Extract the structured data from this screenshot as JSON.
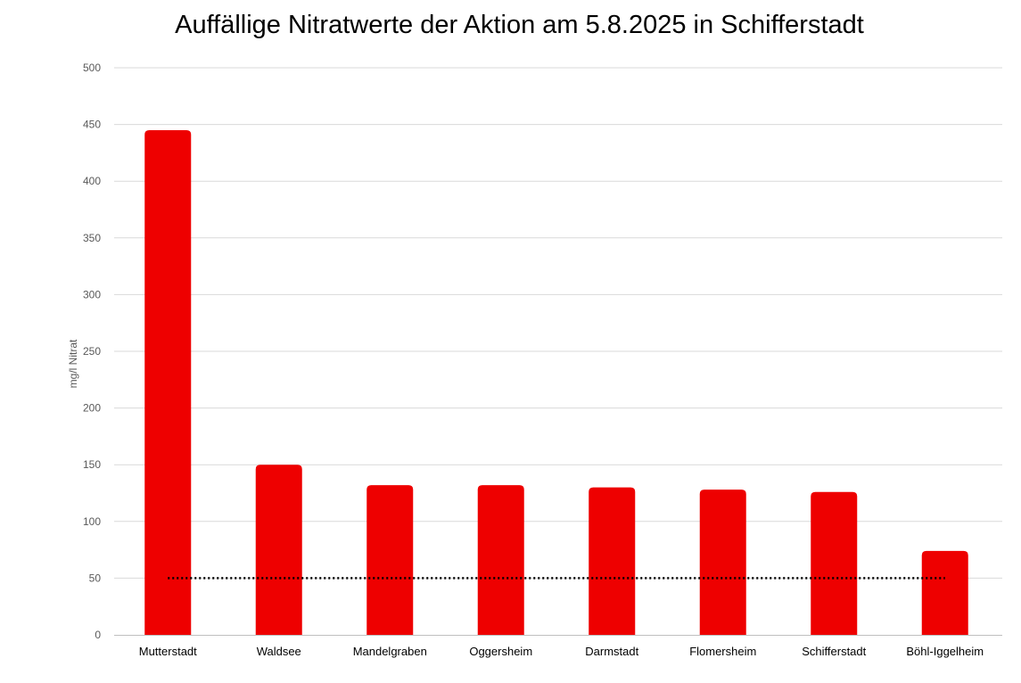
{
  "chart_data": {
    "type": "bar",
    "title": "Auffällige Nitratwerte der Aktion am 5.8.2025 in Schifferstadt",
    "xlabel": "",
    "ylabel": "mg/l Nitrat",
    "ylim": [
      0,
      500
    ],
    "yticks": [
      0,
      50,
      100,
      150,
      200,
      250,
      300,
      350,
      400,
      450,
      500
    ],
    "grid": true,
    "categories": [
      "Mutterstadt",
      "Waldsee",
      "Mandelgraben",
      "Oggersheim",
      "Darmstadt",
      "Flomersheim",
      "Schifferstadt",
      "Böhl-Iggelheim"
    ],
    "values": [
      445,
      150,
      132,
      132,
      130,
      128,
      126,
      74
    ],
    "reference_line": {
      "value": 50,
      "style": "dotted"
    },
    "colors": {
      "bar": "#EE0000",
      "grid": "#D9D9D9",
      "reference": "#000000"
    }
  }
}
